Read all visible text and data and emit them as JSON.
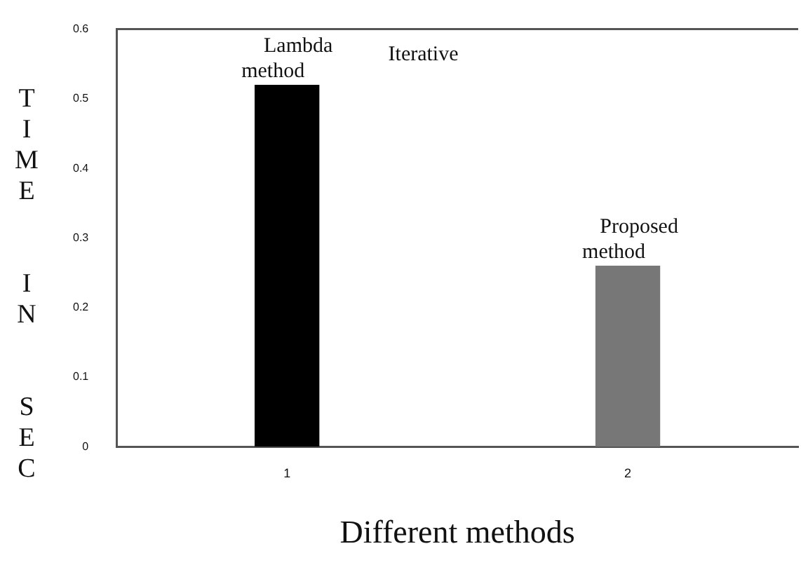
{
  "chart_data": {
    "type": "bar",
    "xlabel": "Different methods",
    "ylabel": "TIME IN SEC",
    "categories": [
      "1",
      "2"
    ],
    "values": [
      0.52,
      0.26
    ],
    "colors": [
      "#000000",
      "#777777"
    ],
    "ylim": [
      0,
      0.6
    ],
    "yticks": [
      0,
      0.1,
      0.2,
      0.3,
      0.4,
      0.5,
      0.6
    ],
    "grid": false,
    "legend": false,
    "annotations": [
      {
        "text": "Lambda method",
        "x": "1",
        "y": 0.52
      },
      "Iterative",
      {
        "text": "Proposed method",
        "x": "2",
        "y": 0.26
      }
    ]
  }
}
